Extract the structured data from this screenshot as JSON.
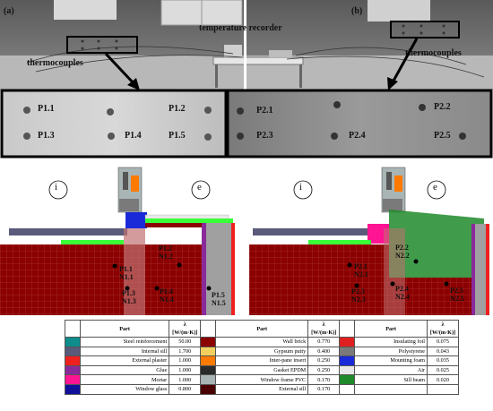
{
  "photos": {
    "panel_a_label": "(a)",
    "panel_b_label": "(b)",
    "recorder_label": "temperature recorder",
    "thermocouples_left": "thermocouples",
    "thermocouples_right": "thermocouples",
    "sensors_left": [
      "P1.1",
      "P1.2",
      "P1.3",
      "P1.4",
      "P1.5"
    ],
    "sensors_right": [
      "P2.1",
      "P2.2",
      "P2.3",
      "P2.4",
      "P2.5"
    ]
  },
  "diagrams": {
    "inside_marker": "i",
    "exterior_marker": "e",
    "left_points": [
      {
        "p": "P1.1",
        "n": "N1.1"
      },
      {
        "p": "P1.2",
        "n": "N1.2"
      },
      {
        "p": "P1.3",
        "n": "N1.3"
      },
      {
        "p": "P1.4",
        "n": "N1.4"
      },
      {
        "p": "P1.5",
        "n": "N1.5"
      }
    ],
    "right_points": [
      {
        "p": "P2.1",
        "n": "N2.1"
      },
      {
        "p": "P2.2",
        "n": "N2.2"
      },
      {
        "p": "P2.3",
        "n": "N2.3"
      },
      {
        "p": "P2.4",
        "n": "N2.4"
      },
      {
        "p": "P2.5",
        "n": "N2.5"
      }
    ]
  },
  "legend": {
    "part_header": "Part",
    "lambda_header": "λ",
    "unit_header": "[W/(m·K)]",
    "rows": [
      [
        {
          "color": "#0f8c8c",
          "part": "Steel reinforcement",
          "val": "50.00"
        },
        {
          "color": "#8b0000",
          "part": "Wall brick",
          "val": "0.770"
        },
        {
          "color": "#e02020",
          "part": "Insulating foil",
          "val": "0.075"
        }
      ],
      [
        {
          "color": "#5a5a7a",
          "part": "Internal sill",
          "val": "1.700"
        },
        {
          "color": "#f2d060",
          "part": "Gypsum putty",
          "val": "0.400"
        },
        {
          "color": "#7a7a7a",
          "part": "Polystyrene",
          "val": "0.043"
        }
      ],
      [
        {
          "color": "#ee2020",
          "part": "External plaster",
          "val": "1.000"
        },
        {
          "color": "#ff7a00",
          "part": "Inter-pane insert",
          "val": "0.250"
        },
        {
          "color": "#1a2ad8",
          "part": "Mounting foam",
          "val": "0.035"
        }
      ],
      [
        {
          "color": "#8a2a9a",
          "part": "Glue",
          "val": "1.000"
        },
        {
          "color": "#2a2a2a",
          "part": "Gasket EPDM",
          "val": "0.250"
        },
        {
          "color": "#e8e8e8",
          "part": "Air",
          "val": "0.025"
        }
      ],
      [
        {
          "color": "#ff1493",
          "part": "Mortar",
          "val": "1.000"
        },
        {
          "color": "#a9b4b4",
          "part": "Window frame PVC",
          "val": "0.170"
        },
        {
          "color": "#1e8a2a",
          "part": "Sill beam",
          "val": "0.020"
        }
      ],
      [
        {
          "color": "#10109a",
          "part": "Window glass",
          "val": "0.800"
        },
        {
          "color": "#4a0000",
          "part": "External sill",
          "val": "0.170"
        },
        {
          "color": "",
          "part": "",
          "val": ""
        }
      ]
    ]
  }
}
